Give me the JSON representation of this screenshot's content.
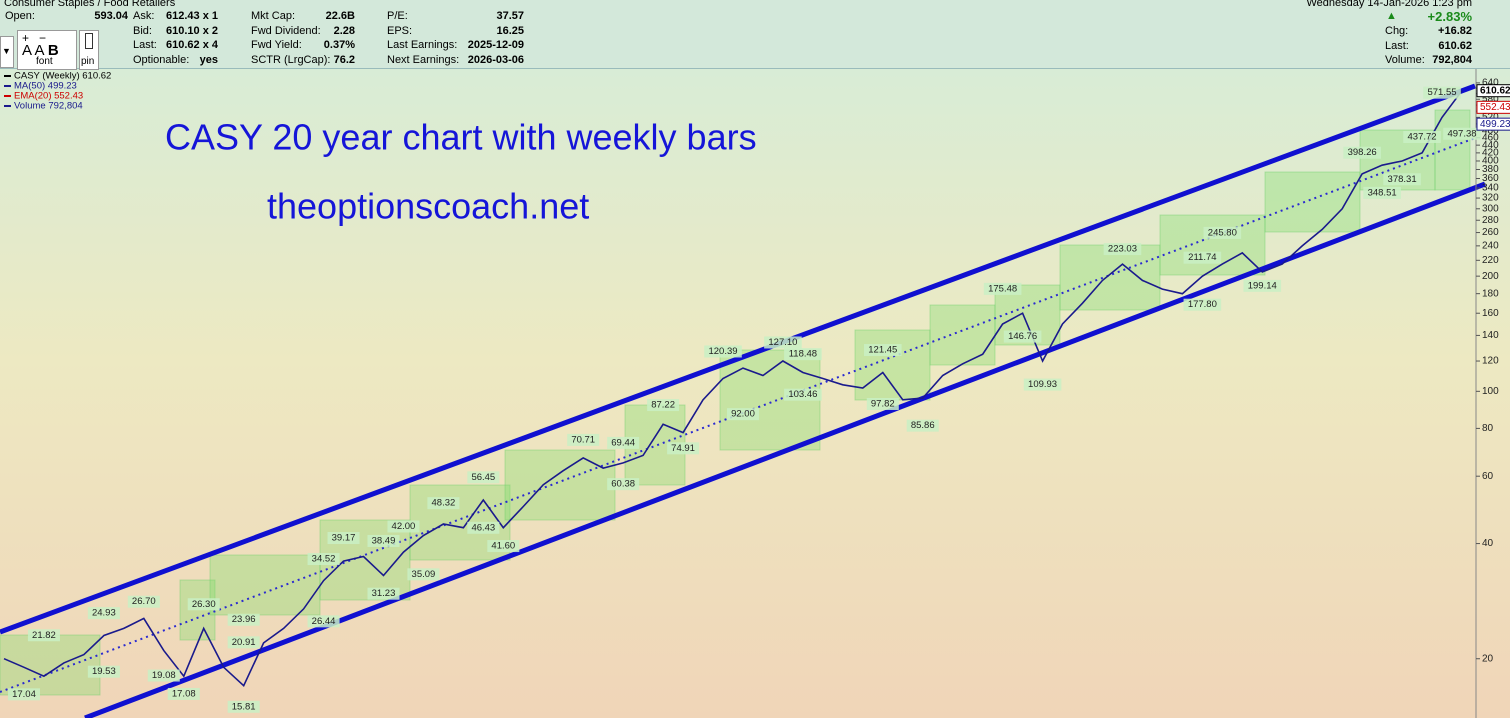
{
  "header": {
    "breadcrumb": "Consumer Staples / Food Retailers",
    "columns": [
      [
        {
          "label": "Open:",
          "value": "593.04"
        }
      ],
      [
        {
          "label": "Ask:",
          "value": "612.43 x 1"
        },
        {
          "label": "Bid:",
          "value": "610.10 x 2"
        },
        {
          "label": "Last:",
          "value": "610.62 x 4"
        },
        {
          "label": "Optionable:",
          "value": "yes"
        }
      ],
      [
        {
          "label": "Mkt Cap:",
          "value": "22.6B"
        },
        {
          "label": "Fwd Dividend:",
          "value": "2.28"
        },
        {
          "label": "Fwd Yield:",
          "value": "0.37%"
        },
        {
          "label": "SCTR (LrgCap):",
          "value": "76.2"
        }
      ],
      [
        {
          "label": "P/E:",
          "value": "37.57"
        },
        {
          "label": "EPS:",
          "value": "16.25"
        },
        {
          "label": "Last Earnings:",
          "value": "2025-12-09"
        },
        {
          "label": "Next Earnings:",
          "value": "2026-03-06"
        }
      ]
    ],
    "date": "Wednesday  14-Jan-2026  1:23 pm",
    "change_pct": "+2.83%",
    "right_fields": [
      {
        "label": "Chg:",
        "value": "+16.82"
      },
      {
        "label": "Last:",
        "value": "610.62"
      },
      {
        "label": "Volume:",
        "value": "792,804"
      }
    ],
    "toolbar": {
      "font": "font",
      "pin": "pin"
    }
  },
  "chart_data": {
    "type": "line",
    "title": "CASY 20 year chart with weekly bars",
    "subtitle": "theoptionscoach.net",
    "log_scale": true,
    "color": "#1a1a8c",
    "values": [
      20,
      19,
      18,
      19.5,
      20.5,
      23,
      24,
      25.5,
      21,
      18,
      24,
      19,
      17,
      22,
      24,
      27,
      32,
      36,
      37,
      33,
      38,
      42,
      45,
      44,
      52,
      44,
      50,
      57,
      62,
      67,
      63,
      65,
      68,
      82,
      78,
      95,
      108,
      115,
      110,
      120,
      112,
      108,
      104,
      102,
      112,
      95,
      96,
      110,
      118,
      125,
      150,
      160,
      120,
      150,
      170,
      195,
      215,
      195,
      185,
      180,
      200,
      215,
      230,
      205,
      215,
      240,
      265,
      300,
      370,
      390,
      400,
      420,
      520,
      610.62
    ],
    "ylim": [
      14,
      700
    ],
    "yticks": [
      20,
      40,
      60,
      80,
      100,
      120,
      140,
      160,
      180,
      200,
      220,
      240,
      260,
      280,
      300,
      320,
      340,
      360,
      380,
      400,
      420,
      440,
      460,
      480,
      500,
      520,
      540,
      560,
      580,
      600,
      620,
      640
    ],
    "annotations": {
      "index": [
        1,
        2,
        5,
        5,
        7,
        8,
        9,
        10,
        12,
        12,
        12,
        16,
        16,
        17,
        19,
        19,
        20,
        21,
        22,
        24,
        24,
        25,
        29,
        31,
        31,
        33,
        34,
        36,
        37,
        39,
        40,
        40,
        44,
        44,
        46,
        50,
        51,
        52,
        56,
        60,
        60,
        61,
        63,
        68,
        69,
        70,
        71,
        72,
        73
      ],
      "values": [
        17.04,
        21.82,
        24.93,
        19.53,
        26.7,
        19.08,
        17.08,
        26.3,
        15.81,
        20.91,
        23.96,
        26.44,
        34.52,
        39.17,
        38.49,
        31.23,
        42,
        35.09,
        48.32,
        46.43,
        56.45,
        41.6,
        70.71,
        69.44,
        60.38,
        87.22,
        74.91,
        120.39,
        92,
        127.1,
        118.48,
        103.46,
        97.82,
        121.45,
        85.86,
        175.48,
        146.76,
        109.93,
        223.03,
        211.74,
        177.8,
        245.8,
        199.14,
        398.26,
        348.51,
        378.31,
        437.72,
        571.55,
        497.38
      ],
      "value_labels": [
        "17.04",
        "21.82",
        "24.93",
        "19.53",
        "26.70",
        "19.08",
        "17.08",
        "26.30",
        "15.81",
        "20.91",
        "23.96",
        "26.44",
        "34.52",
        "39.17",
        "38.49",
        "31.23",
        "42.00",
        "35.09",
        "48.32",
        "46.43",
        "56.45",
        "41.60",
        "70.71",
        "69.44",
        "60.38",
        "87.22",
        "74.91",
        "120.39",
        "92.00",
        "127.10",
        "118.48",
        "103.46",
        "97.82",
        "121.45",
        "85.86",
        "175.48",
        "146.76",
        "109.93",
        "223.03",
        "211.74",
        "177.80",
        "245.80",
        "199.14",
        "398.26",
        "348.51",
        "378.31",
        "437.72",
        "571.55",
        "497.38"
      ]
    },
    "price_markers": {
      "values": [
        610.62,
        552.43,
        499.23
      ],
      "colors": [
        "#000000",
        "#cc0000",
        "#1a1a8c"
      ]
    },
    "legend": [
      {
        "text": "CASY (Weekly) 610.62",
        "color": "#000000"
      },
      {
        "text": "MA(50) 499.23",
        "color": "#1a1a8c"
      },
      {
        "text": "EMA(20) 552.43",
        "color": "#cc0000"
      },
      {
        "text": "Volume 792,804",
        "color": "#1a1a8c"
      }
    ]
  }
}
